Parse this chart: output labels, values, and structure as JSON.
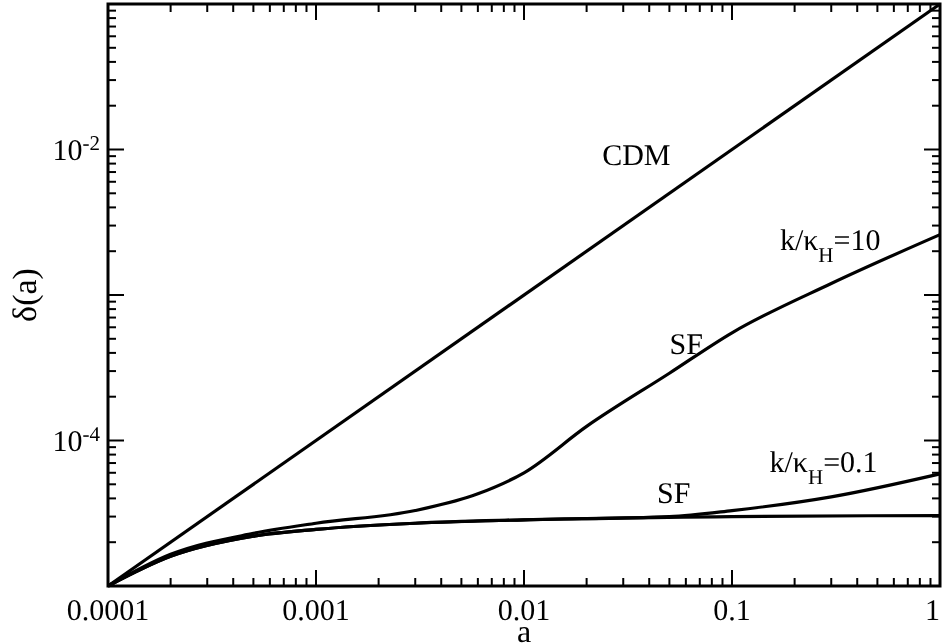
{
  "chart_data": {
    "type": "line",
    "xlabel": "a",
    "ylabel": "δ(a)",
    "log": "xy",
    "xlim": [
      0.0001,
      1
    ],
    "ylim": [
      1e-05,
      0.1
    ],
    "xticks": [
      0.0001,
      0.001,
      0.01,
      0.1,
      1
    ],
    "yticks": [
      {
        "value": 0.0001,
        "label": "10$^{-4}$"
      },
      {
        "value": 0.001,
        "label": null
      },
      {
        "value": 0.01,
        "label": "10$^{-2}$"
      }
    ],
    "grid": false,
    "marker": "none",
    "line_style": "solid",
    "series": [
      {
        "color": "#000000",
        "x": [
          0.0001,
          1
        ],
        "values": [
          1e-05,
          0.1
        ]
      },
      {
        "color": "#000000",
        "x": [
          0.0001,
          0.0002,
          0.0005,
          0.001,
          0.003,
          0.006,
          0.01,
          0.02,
          0.05,
          0.1,
          0.3,
          1
        ],
        "values": [
          1e-05,
          1.65e-05,
          2.3e-05,
          2.7e-05,
          3.3e-05,
          4.3e-05,
          6e-05,
          0.000125,
          0.00029,
          0.00055,
          0.0012,
          0.0026
        ]
      },
      {
        "color": "#000000",
        "x": [
          0.0001,
          0.0002,
          0.0005,
          0.001,
          0.003,
          0.01,
          0.05,
          0.1,
          0.3,
          1
        ],
        "values": [
          1e-05,
          1.6e-05,
          2.2e-05,
          2.45e-05,
          2.7e-05,
          2.85e-05,
          3e-05,
          3.3e-05,
          4.1e-05,
          5.9e-05
        ]
      },
      {
        "color": "#000000",
        "x": [
          0.0001,
          0.0002,
          0.0005,
          0.001,
          0.003,
          0.01,
          0.1,
          1
        ],
        "values": [
          1e-05,
          1.6e-05,
          2.2e-05,
          2.45e-05,
          2.7e-05,
          2.85e-05,
          3e-05,
          3.05e-05
        ]
      }
    ],
    "annotations": [
      "CDM",
      "k/κ$_{H}$=10",
      "SF",
      "k/κ$_{H}$=0.1",
      "SF"
    ]
  }
}
